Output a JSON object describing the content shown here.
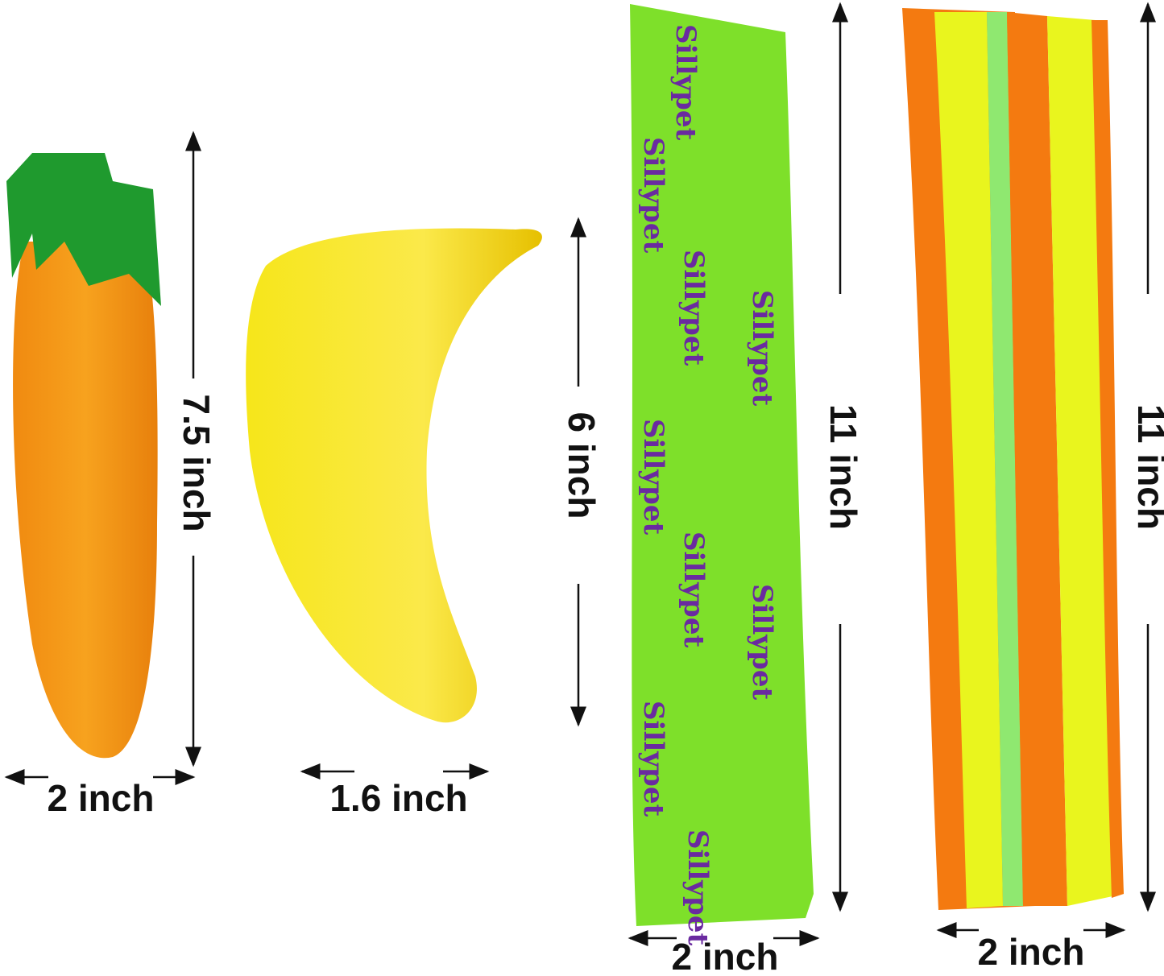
{
  "items": [
    {
      "name": "carrot",
      "height": "7.5 inch",
      "width": "2 inch"
    },
    {
      "name": "banana",
      "height": "6 inch",
      "width": "1.6 inch"
    },
    {
      "name": "green-stick",
      "height": "11 inch",
      "width": "2 inch",
      "pattern_text": "Sillypet"
    },
    {
      "name": "striped-stick",
      "height": "11 inch",
      "width": "2 inch"
    }
  ]
}
